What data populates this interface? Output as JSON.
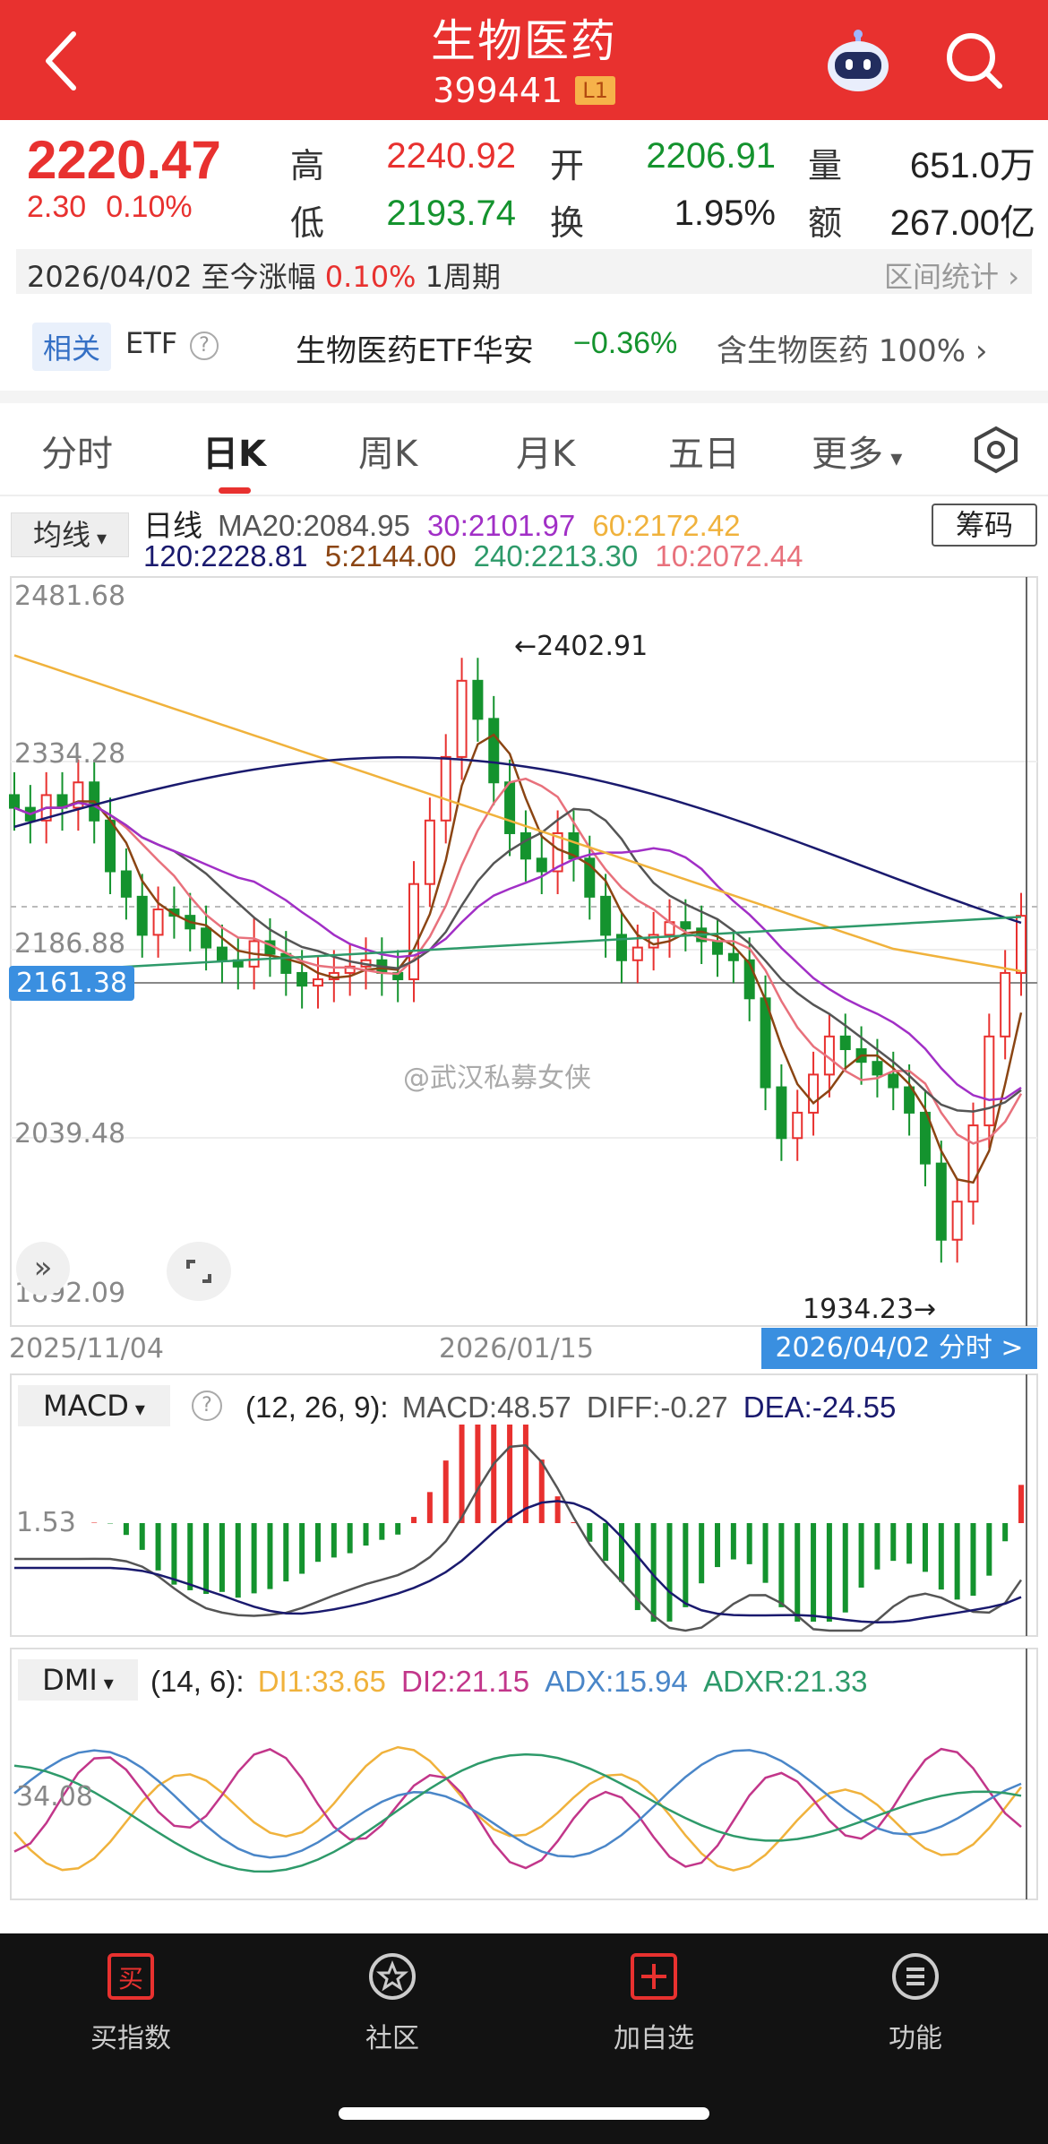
{
  "header": {
    "title": "生物医药",
    "code": "399441",
    "level": "L1"
  },
  "quote": {
    "price": "2220.47",
    "change": "2.30",
    "change_pct": "0.10%",
    "high_label": "高",
    "high": "2240.92",
    "low_label": "低",
    "low": "2193.74",
    "open_label": "开",
    "open": "2206.91",
    "turnover_label": "换",
    "turnover": "1.95%",
    "volume_label": "量",
    "volume": "651.0万",
    "amount_label": "额",
    "amount": "267.00亿"
  },
  "range": {
    "date": "2026/04/02",
    "text": "至今涨幅",
    "pct": "0.10%",
    "period": "1周期",
    "stat": "区间统计"
  },
  "etf": {
    "tag": "相关",
    "label": "ETF",
    "help": "?",
    "name": "生物医药ETF华安",
    "pct": "−0.36%",
    "contain": "含生物医药 100%"
  },
  "tabs": [
    "分时",
    "日K",
    "周K",
    "月K",
    "五日",
    "更多"
  ],
  "ma": {
    "selector": "均线",
    "chip_button": "筹码",
    "day_label": "日线",
    "ma20": "MA20:2084.95",
    "ma30": "30:2101.97",
    "ma60": "60:2172.42",
    "ma120": "120:2228.81",
    "ma5": "5:2144.00",
    "ma240": "240:2213.30",
    "ma10": "10:2072.44"
  },
  "kline": {
    "y_labels": [
      "2481.68",
      "2334.28",
      "2186.88",
      "2039.48",
      "1892.09"
    ],
    "crosshair_value": "2161.38",
    "high_mark": "←2402.91",
    "low_mark": "1934.23→",
    "x_labels": [
      "2025/11/04",
      "2026/01/15"
    ],
    "date_button": "2026/04/02 分时 >",
    "watermark": "@武汉私募女侠"
  },
  "macd": {
    "selector": "MACD",
    "params": "(12, 26, 9):",
    "macd": "MACD:48.57",
    "diff": "DIFF:-0.27",
    "dea": "DEA:-24.55",
    "y_label": "1.53"
  },
  "dmi": {
    "selector": "DMI",
    "params": "(14, 6):",
    "di1": "DI1:33.65",
    "di2": "DI2:21.15",
    "adx": "ADX:15.94",
    "adxr": "ADXR:21.33",
    "y_label": "34.08"
  },
  "colors": {
    "red": "#e8312f",
    "green": "#14932e",
    "ma5": "#8b4513",
    "ma10": "#e8717c",
    "ma20": "#555555",
    "ma30": "#a12fc6",
    "ma60": "#f0b23c",
    "ma120": "#1a1a6e",
    "ma240": "#2e9a6a"
  },
  "nav": [
    {
      "label": "买指数",
      "icon": "buy-icon"
    },
    {
      "label": "社区",
      "icon": "community-icon"
    },
    {
      "label": "加自选",
      "icon": "add-watchlist-icon"
    },
    {
      "label": "功能",
      "icon": "menu-icon"
    }
  ]
}
